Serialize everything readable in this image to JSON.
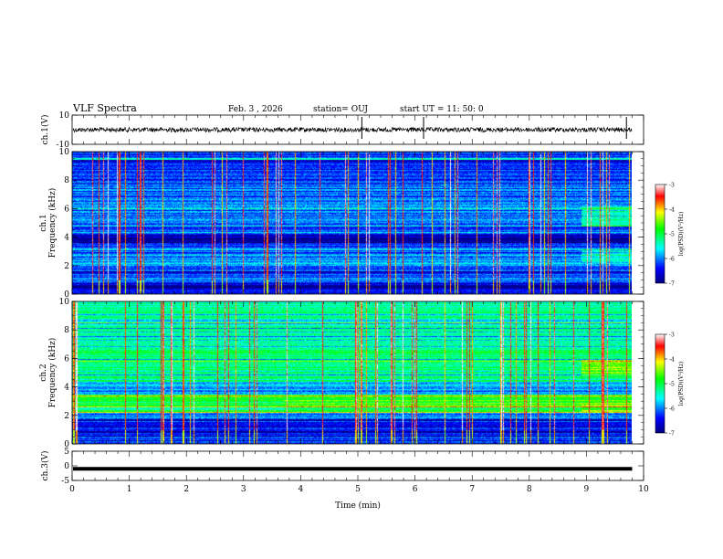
{
  "header": {
    "title": "VLF Spectra",
    "date": "Feb. 3 , 2026",
    "station": "station= OUJ",
    "start": "start UT = 11: 50: 0"
  },
  "chart_data": [
    {
      "id": "ch1-waveform",
      "type": "line",
      "ylabel": "ch.1(V)",
      "ylim": [
        -10,
        10
      ],
      "y_ticks": [
        "10",
        "-10"
      ],
      "xlim": [
        0,
        10
      ],
      "description_values": {
        "baseline": 0,
        "spike_times_min": [
          5.07,
          6.15,
          9.7
        ]
      }
    },
    {
      "id": "ch1-spectrogram",
      "type": "heatmap",
      "ylabel": "ch.1\nFrequency (kHz)",
      "ylabel_lines": [
        "ch.1",
        "Frequency (kHz)"
      ],
      "ylim": [
        0,
        10
      ],
      "y_ticks": [
        "0",
        "2",
        "4",
        "6",
        "8",
        "10"
      ],
      "xlim": [
        0,
        10
      ],
      "data_end_min": 9.8,
      "colorbar": {
        "label": "log(PSD)(V²/Hz)",
        "range": [
          -7,
          -3
        ],
        "ticks": [
          "-3",
          "-4",
          "-5",
          "-6",
          "-7"
        ]
      }
    },
    {
      "id": "ch2-spectrogram",
      "type": "heatmap",
      "ylabel": "ch.2\nFrequency (kHz)",
      "ylabel_lines": [
        "ch.2",
        "Frequency (kHz)"
      ],
      "ylim": [
        0,
        10
      ],
      "y_ticks": [
        "0",
        "2",
        "4",
        "6",
        "8",
        "10"
      ],
      "xlim": [
        0,
        10
      ],
      "data_end_min": 9.8,
      "colorbar": {
        "label": "log(PSD)(V²/Hz)",
        "range": [
          -7,
          -3
        ],
        "ticks": [
          "-3",
          "-4",
          "-5",
          "-6",
          "-7"
        ]
      }
    },
    {
      "id": "ch3-waveform",
      "type": "line",
      "ylabel": "ch.3(V)",
      "ylim": [
        -5,
        5
      ],
      "y_ticks": [
        "5",
        "0",
        "-5"
      ],
      "xlim": [
        0,
        10
      ],
      "description_values": {
        "level": -1
      }
    }
  ],
  "x_axis": {
    "label": "Time (min)",
    "ticks": [
      "0",
      "1",
      "2",
      "3",
      "4",
      "5",
      "6",
      "7",
      "8",
      "9",
      "10"
    ]
  },
  "colors": {
    "colormap": [
      "#000080",
      "#0000ff",
      "#00ffff",
      "#00ff00",
      "#ffff00",
      "#ff0000",
      "#ffffff"
    ]
  }
}
